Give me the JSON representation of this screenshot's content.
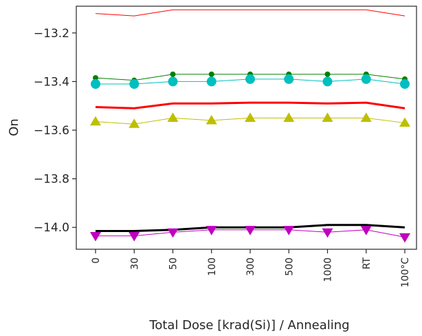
{
  "chart_data": {
    "type": "line",
    "title": "",
    "xlabel": "Total Dose [krad(Si)] / Annealing",
    "ylabel": "On",
    "categories": [
      "0",
      "30",
      "50",
      "100",
      "300",
      "500",
      "1000",
      "RT",
      "100°C"
    ],
    "ylim": [
      -14.09,
      -13.09
    ],
    "yticks": [
      -14.0,
      -13.8,
      -13.6,
      -13.4,
      -13.2
    ],
    "ytick_labels": [
      "−14.0",
      "−13.8",
      "−13.6",
      "−13.4",
      "−13.2"
    ],
    "grid": false,
    "legend": "none",
    "series": [
      {
        "color": "#ff0000",
        "marker": "none",
        "width": 1,
        "values": [
          -13.12,
          -13.13,
          -13.105,
          -13.105,
          -13.105,
          -13.105,
          -13.105,
          -13.105,
          -13.13
        ]
      },
      {
        "color": "#008000",
        "marker": "circle-small",
        "width": 1,
        "values": [
          -13.385,
          -13.395,
          -13.37,
          -13.37,
          -13.37,
          -13.37,
          -13.37,
          -13.37,
          -13.39
        ]
      },
      {
        "color": "#00bfbf",
        "marker": "circle",
        "width": 1,
        "values": [
          -13.41,
          -13.41,
          -13.4,
          -13.4,
          -13.39,
          -13.39,
          -13.4,
          -13.39,
          -13.41
        ]
      },
      {
        "color": "#ff0000",
        "marker": "none",
        "width": 3,
        "values": [
          -13.505,
          -13.51,
          -13.49,
          -13.49,
          -13.487,
          -13.487,
          -13.49,
          -13.487,
          -13.51
        ]
      },
      {
        "color": "#bfbf00",
        "marker": "triangle-up",
        "width": 1,
        "values": [
          -13.565,
          -13.575,
          -13.55,
          -13.56,
          -13.55,
          -13.55,
          -13.55,
          -13.55,
          -13.57
        ]
      },
      {
        "color": "#000000",
        "marker": "none",
        "width": 3,
        "values": [
          -14.015,
          -14.015,
          -14.01,
          -14.0,
          -14.0,
          -14.0,
          -13.99,
          -13.99,
          -14.0
        ]
      },
      {
        "color": "#bf00bf",
        "marker": "triangle-down",
        "width": 1,
        "values": [
          -14.035,
          -14.035,
          -14.02,
          -14.01,
          -14.01,
          -14.01,
          -14.02,
          -14.01,
          -14.04
        ]
      }
    ]
  }
}
